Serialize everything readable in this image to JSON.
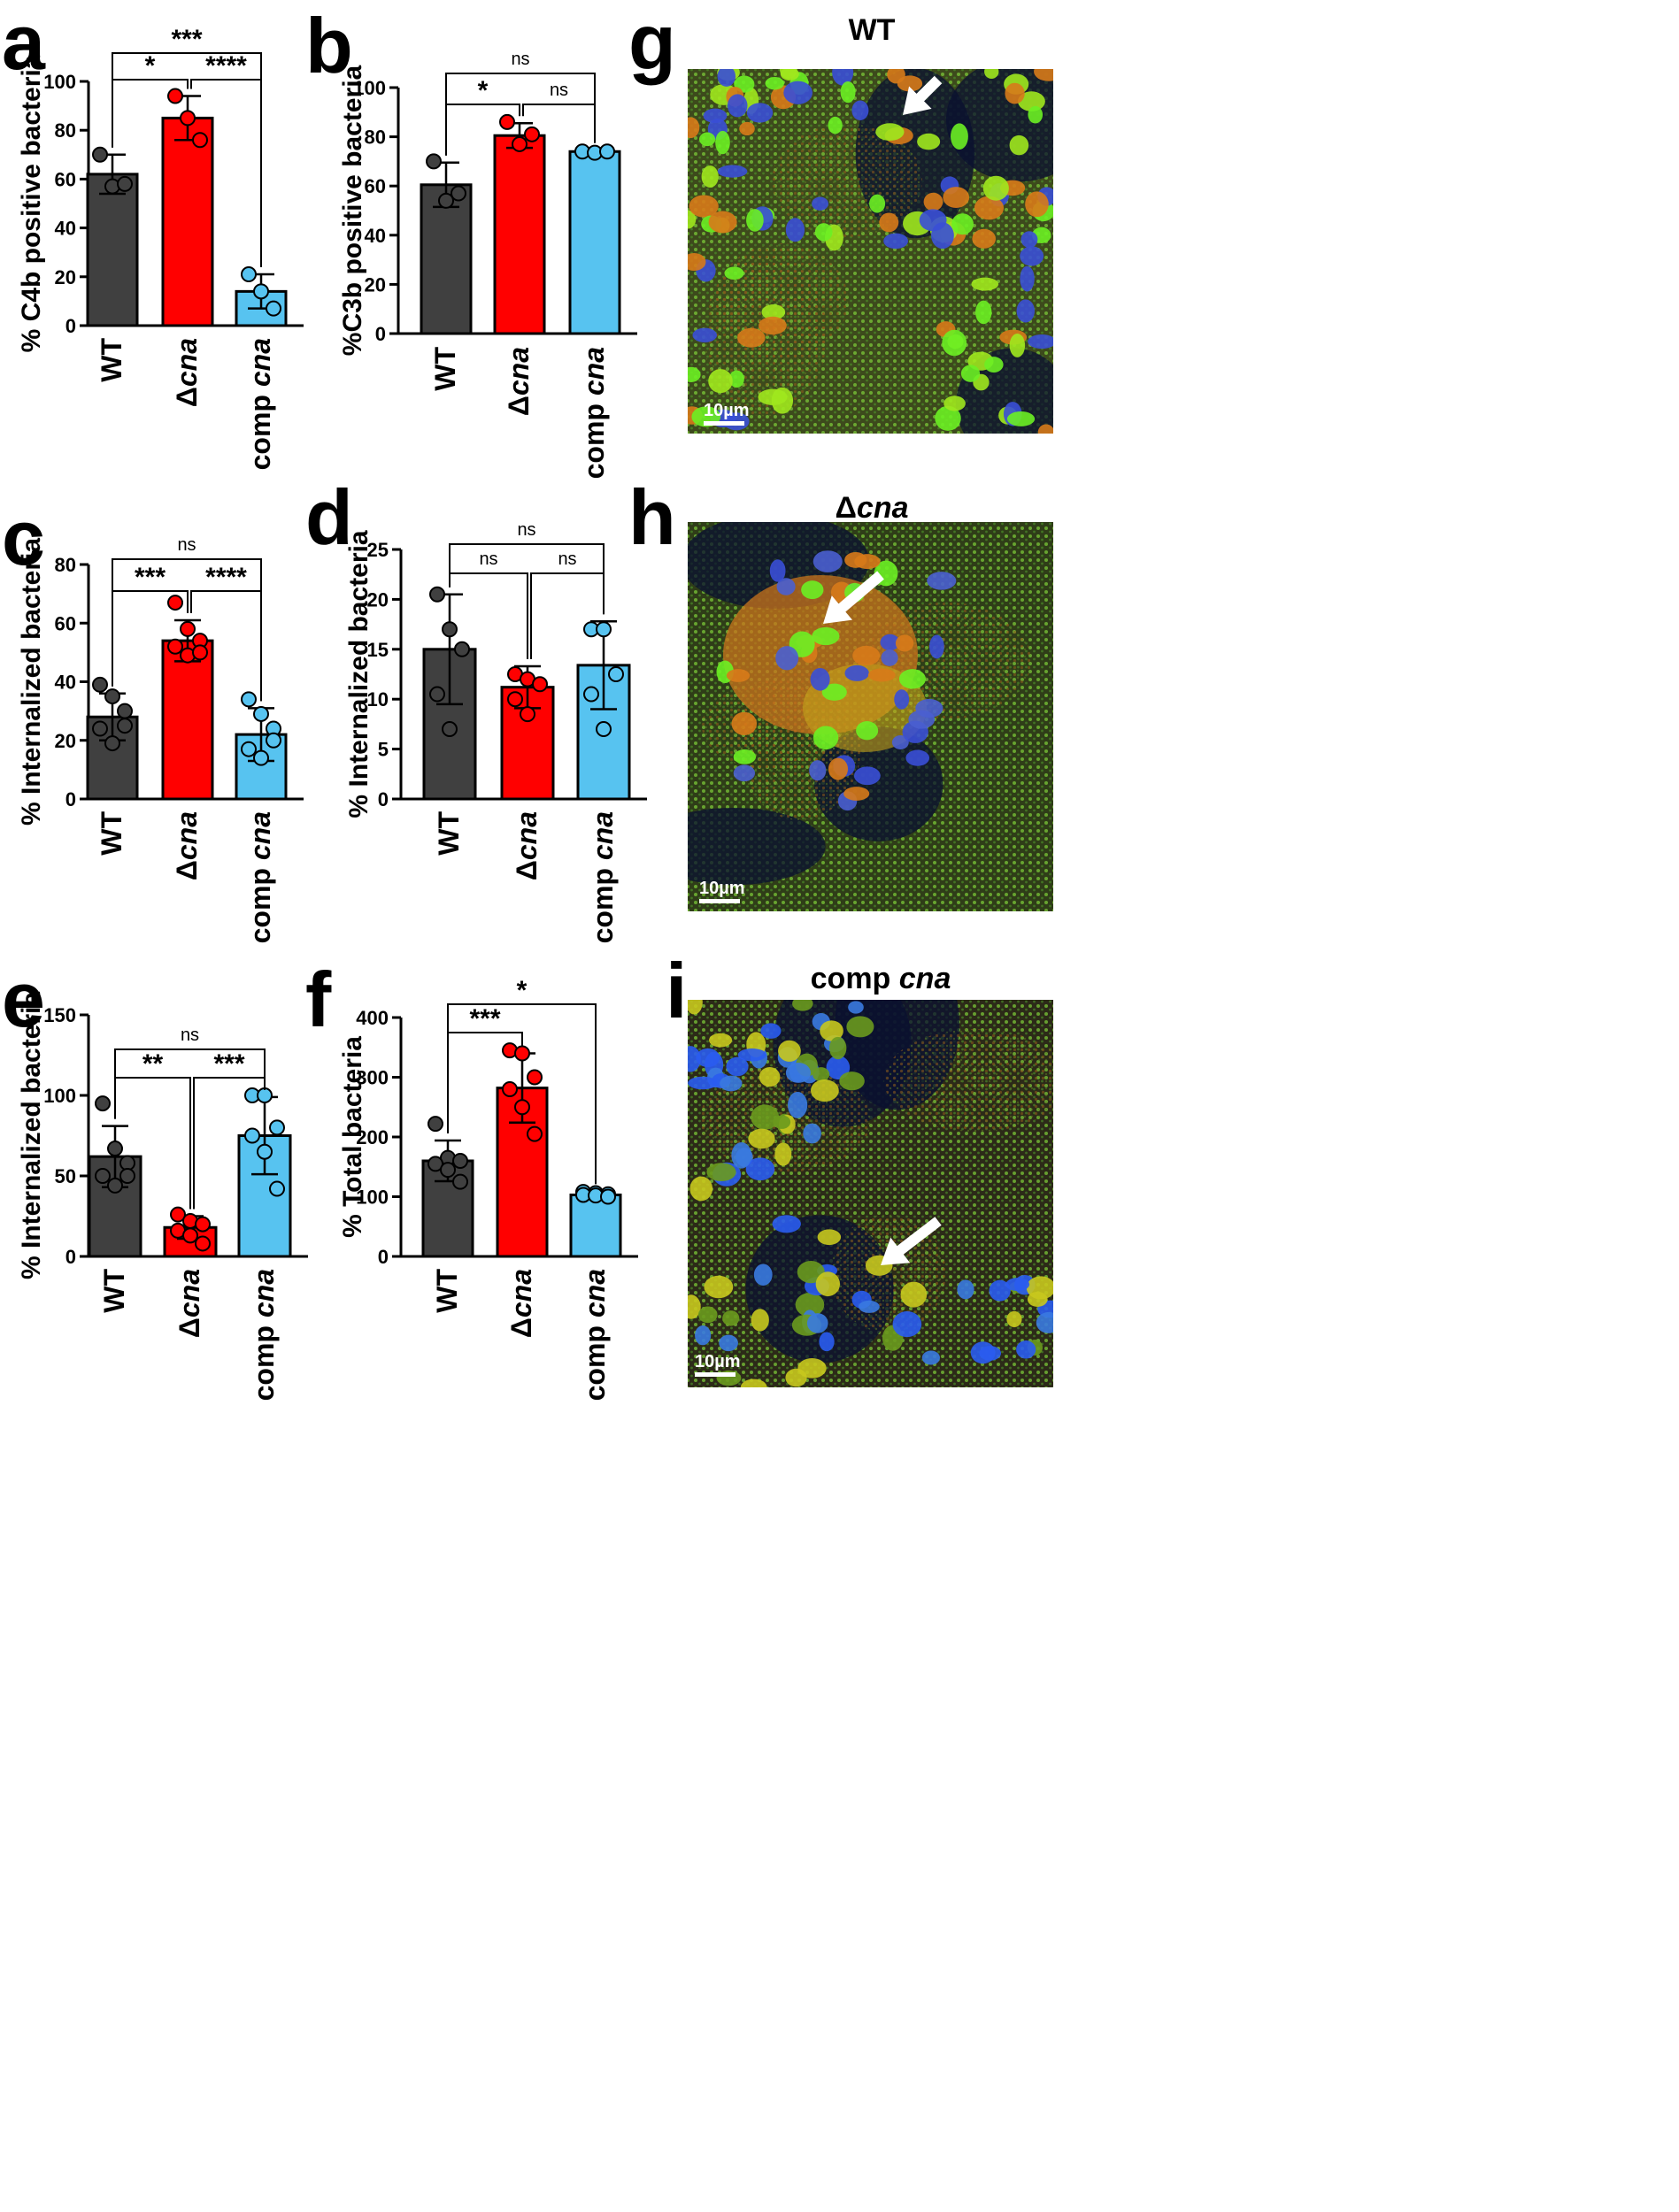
{
  "chart_data": [
    {
      "panel": "a",
      "type": "bar",
      "ylabel": "% C4b positive bacteria",
      "ylim": [
        0,
        100
      ],
      "yticks": [
        0,
        20,
        40,
        60,
        80,
        100
      ],
      "categories": [
        {
          "pre": "WT",
          "ital": ""
        },
        {
          "pre": "Δ",
          "ital": "cna"
        },
        {
          "pre": "comp ",
          "ital": "cna"
        }
      ],
      "means": [
        62,
        85,
        14
      ],
      "sd": [
        8,
        9,
        7
      ],
      "points": [
        [
          70,
          57,
          58
        ],
        [
          94,
          85,
          76
        ],
        [
          21,
          14,
          7
        ]
      ],
      "comparisons": [
        {
          "from": 0,
          "to": 1,
          "label": "*",
          "level": 0
        },
        {
          "from": 1,
          "to": 2,
          "label": "****",
          "level": 0
        },
        {
          "from": 0,
          "to": 2,
          "label": "***",
          "level": 1
        }
      ]
    },
    {
      "panel": "b",
      "type": "bar",
      "ylabel": "%C3b positive bacteria",
      "ylim": [
        0,
        100
      ],
      "yticks": [
        0,
        20,
        40,
        60,
        80,
        100
      ],
      "categories": [
        {
          "pre": "WT",
          "ital": ""
        },
        {
          "pre": "Δ",
          "ital": "cna"
        },
        {
          "pre": "comp ",
          "ital": "cna"
        }
      ],
      "means": [
        60.5,
        80.5,
        74
      ],
      "sd": [
        9,
        5,
        0.6
      ],
      "points": [
        [
          70,
          54,
          57
        ],
        [
          86,
          77,
          81
        ],
        [
          74,
          73.5,
          74
        ]
      ],
      "comparisons": [
        {
          "from": 0,
          "to": 1,
          "label": "*",
          "level": 0
        },
        {
          "from": 1,
          "to": 2,
          "label": "ns",
          "level": 0
        },
        {
          "from": 0,
          "to": 2,
          "label": "ns",
          "level": 1
        }
      ]
    },
    {
      "panel": "c",
      "type": "bar",
      "ylabel": "% Internalized bacteria",
      "ylim": [
        0,
        80
      ],
      "yticks": [
        0,
        20,
        40,
        60,
        80
      ],
      "categories": [
        {
          "pre": "WT",
          "ital": ""
        },
        {
          "pre": "Δ",
          "ital": "cna"
        },
        {
          "pre": "comp ",
          "ital": "cna"
        }
      ],
      "means": [
        28,
        54,
        22
      ],
      "sd": [
        8,
        7,
        9
      ],
      "points": [
        [
          39,
          35,
          30,
          24,
          19,
          25
        ],
        [
          67,
          58,
          54,
          52,
          49,
          50
        ],
        [
          34,
          29,
          24,
          17,
          14,
          20
        ]
      ],
      "comparisons": [
        {
          "from": 0,
          "to": 1,
          "label": "***",
          "level": 0
        },
        {
          "from": 1,
          "to": 2,
          "label": "****",
          "level": 0
        },
        {
          "from": 0,
          "to": 2,
          "label": "ns",
          "level": 1
        }
      ]
    },
    {
      "panel": "d",
      "type": "bar",
      "ylabel": "% Internalized bacteria",
      "ylim": [
        0,
        25
      ],
      "yticks": [
        0,
        5,
        10,
        15,
        20,
        25
      ],
      "categories": [
        {
          "pre": "WT",
          "ital": ""
        },
        {
          "pre": "Δ",
          "ital": "cna"
        },
        {
          "pre": "comp ",
          "ital": "cna"
        }
      ],
      "means": [
        15,
        11.2,
        13.4
      ],
      "sd": [
        5.5,
        2.1,
        4.4
      ],
      "points": [
        [
          20.5,
          17,
          15,
          10.5,
          7
        ],
        [
          12.5,
          12,
          11.5,
          10,
          8.5
        ],
        [
          17,
          17,
          12.5,
          10.5,
          7
        ]
      ],
      "comparisons": [
        {
          "from": 0,
          "to": 1,
          "label": "ns",
          "level": 0
        },
        {
          "from": 1,
          "to": 2,
          "label": "ns",
          "level": 0
        },
        {
          "from": 0,
          "to": 2,
          "label": "ns",
          "level": 1
        }
      ]
    },
    {
      "panel": "e",
      "type": "bar",
      "ylabel": "% Internalized bacteria",
      "ylim": [
        0,
        150
      ],
      "yticks": [
        0,
        50,
        100,
        150
      ],
      "categories": [
        {
          "pre": "WT",
          "ital": ""
        },
        {
          "pre": "Δ",
          "ital": "cna"
        },
        {
          "pre": "comp ",
          "ital": "cna"
        }
      ],
      "means": [
        62,
        18,
        75
      ],
      "sd": [
        19,
        7,
        24
      ],
      "points": [
        [
          95,
          67,
          58,
          50,
          44,
          50
        ],
        [
          26,
          22,
          20,
          16,
          13,
          8
        ],
        [
          100,
          100,
          80,
          75,
          65,
          42
        ]
      ],
      "comparisons": [
        {
          "from": 0,
          "to": 1,
          "label": "**",
          "level": 0
        },
        {
          "from": 1,
          "to": 2,
          "label": "***",
          "level": 0
        },
        {
          "from": 0,
          "to": 2,
          "label": "ns",
          "level": 1
        }
      ]
    },
    {
      "panel": "f",
      "type": "bar",
      "ylabel": "% Total bacteria",
      "ylim": [
        0,
        400
      ],
      "yticks": [
        0,
        100,
        200,
        300,
        400
      ],
      "categories": [
        {
          "pre": "WT",
          "ital": ""
        },
        {
          "pre": "Δ",
          "ital": "cna"
        },
        {
          "pre": "comp ",
          "ital": "cna"
        }
      ],
      "means": [
        160,
        282,
        103
      ],
      "sd": [
        34,
        58,
        6
      ],
      "points": [
        [
          222,
          165,
          160,
          155,
          145,
          125
        ],
        [
          345,
          340,
          300,
          280,
          250,
          205
        ],
        [
          108,
          106,
          104,
          103,
          102,
          100
        ]
      ],
      "comparisons": [
        {
          "from": 0,
          "to": 1,
          "label": "***",
          "level": 0
        },
        {
          "from": 0,
          "to": 2,
          "label": "*",
          "level": 1
        }
      ]
    }
  ],
  "micrographs": [
    {
      "panel": "g",
      "title_pre": "WT",
      "title_ital": "",
      "scale_label": "10µm"
    },
    {
      "panel": "h",
      "title_pre": "Δ",
      "title_ital": "cna",
      "scale_label": "10µm"
    },
    {
      "panel": "i",
      "title_pre": "comp ",
      "title_ital": "cna",
      "scale_label": "10µm"
    }
  ],
  "colors": {
    "WT": "#404040",
    "cna": "#ff0000",
    "comp": "#57c3f0",
    "outline": "#000000"
  }
}
